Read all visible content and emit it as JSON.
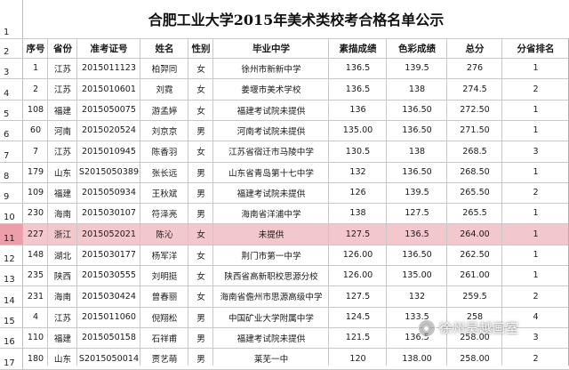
{
  "title": "合肥工业大学2015年美术类校考合格名单公示",
  "row_numbers": [
    "1",
    "2",
    "3",
    "4",
    "5",
    "6",
    "7",
    "8",
    "9",
    "10",
    "11",
    "12",
    "13",
    "14",
    "15",
    "16",
    "17"
  ],
  "headers": [
    "序号",
    "省份",
    "准考证号",
    "姓名",
    "性别",
    "毕业中学",
    "素描成绩",
    "色彩成绩",
    "总分",
    "分省排名"
  ],
  "rows": [
    [
      "1",
      "江苏",
      "2015011123",
      "柏羿同",
      "女",
      "徐州市新新中学",
      "136.5",
      "139.5",
      "276",
      "1"
    ],
    [
      "2",
      "江苏",
      "2015010601",
      "刘霓",
      "女",
      "姜堰市美术学校",
      "136.5",
      "138",
      "274.5",
      "2"
    ],
    [
      "108",
      "福建",
      "2015050075",
      "游孟婷",
      "女",
      "福建考试院未提供",
      "136",
      "136.50",
      "272.50",
      "1"
    ],
    [
      "60",
      "河南",
      "2015020524",
      "刘京京",
      "男",
      "河南考试院未提供",
      "135.00",
      "136.50",
      "271.50",
      "1"
    ],
    [
      "7",
      "江苏",
      "2015010945",
      "陈香羽",
      "女",
      "江苏省宿迁市马陵中学",
      "130.5",
      "138",
      "268.5",
      "3"
    ],
    [
      "179",
      "山东",
      "S2015050389",
      "张长远",
      "男",
      "山东省青岛第十七中学",
      "132",
      "136.50",
      "268.50",
      "1"
    ],
    [
      "109",
      "福建",
      "2015050934",
      "王秋斌",
      "男",
      "福建考试院未提供",
      "126",
      "139.5",
      "265.50",
      "2"
    ],
    [
      "230",
      "海南",
      "2015030107",
      "符泽亮",
      "男",
      "海南省洋浦中学",
      "138",
      "127.5",
      "265.5",
      "1"
    ],
    [
      "227",
      "浙江",
      "2015052021",
      "陈沁",
      "女",
      "未提供",
      "127.5",
      "136.5",
      "264.00",
      "1"
    ],
    [
      "148",
      "湖北",
      "2015030177",
      "杨军洋",
      "女",
      "荆门市第一中学",
      "126.00",
      "136.50",
      "262.50",
      "1"
    ],
    [
      "235",
      "陕西",
      "2015030555",
      "刘明挺",
      "女",
      "陕西省高新职校思源分校",
      "126.00",
      "135.00",
      "261.00",
      "1"
    ],
    [
      "231",
      "海南",
      "2015030424",
      "曾春丽",
      "女",
      "海南省儋州市思源高级中学",
      "127.5",
      "132",
      "259.5",
      "2"
    ],
    [
      "4",
      "江苏",
      "2015011060",
      "倪翔松",
      "男",
      "中国矿业大学附属中学",
      "124.5",
      "133.5",
      "258",
      "4"
    ],
    [
      "110",
      "福建",
      "2015050158",
      "石祥甫",
      "男",
      "福建考试院未提供",
      "121.5",
      "136.5",
      "258.00",
      "3"
    ],
    [
      "180",
      "山东",
      "S2015050014",
      "贾艺萌",
      "男",
      "莱芜一中",
      "120",
      "138.00",
      "258.00",
      "2"
    ]
  ],
  "highlight_row": 8,
  "watermark": "徐州吴越画室"
}
